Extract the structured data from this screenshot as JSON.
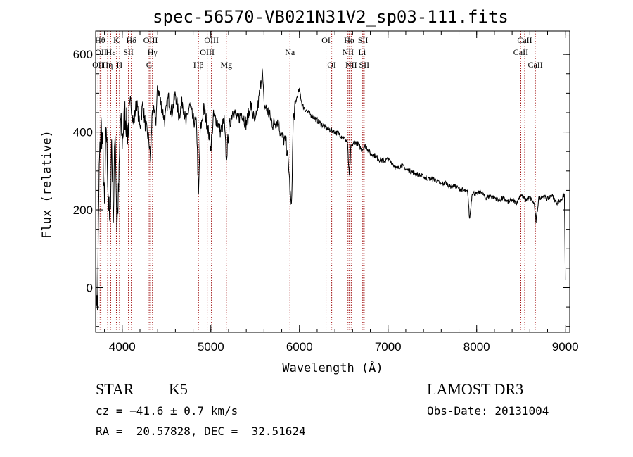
{
  "chart_data": {
    "type": "line",
    "title": "spec-56570-VB021N31V2_sp03-111.fits",
    "xlabel": "Wavelength (Å)",
    "ylabel": "Flux (relative)",
    "xlim": [
      3700,
      9050
    ],
    "ylim": [
      -115,
      660
    ],
    "xticks": [
      {
        "value": 4000,
        "label": "4000"
      },
      {
        "value": 5000,
        "label": "5000"
      },
      {
        "value": 6000,
        "label": "6000"
      },
      {
        "value": 7000,
        "label": "7000"
      },
      {
        "value": 8000,
        "label": "8000"
      },
      {
        "value": 9000,
        "label": "9000"
      }
    ],
    "yticks": [
      {
        "value": 0,
        "label": "0"
      },
      {
        "value": 200,
        "label": "200"
      },
      {
        "value": 400,
        "label": "400"
      },
      {
        "value": 600,
        "label": "600"
      }
    ],
    "line_color": "#a01010",
    "spectrum_color": "#000000",
    "lines": [
      {
        "label": "OII",
        "wave": 3727,
        "row": 2
      },
      {
        "label": "Hθ",
        "wave": 3750,
        "row": 0
      },
      {
        "label": "OII",
        "wave": 3760,
        "row": 1
      },
      {
        "label": "Hη",
        "wave": 3835,
        "row": 2
      },
      {
        "label": "Hε",
        "wave": 3870,
        "row": 1
      },
      {
        "label": "K",
        "wave": 3934,
        "row": 0
      },
      {
        "label": "H",
        "wave": 3969,
        "row": 2
      },
      {
        "label": "Hδ",
        "wave": 4102,
        "row": 0
      },
      {
        "label": "SII",
        "wave": 4070,
        "row": 1
      },
      {
        "label": "G",
        "wave": 4304,
        "row": 2
      },
      {
        "label": "OIII",
        "wave": 4320,
        "row": 0
      },
      {
        "label": "Hγ",
        "wave": 4341,
        "row": 1
      },
      {
        "label": "Hβ",
        "wave": 4861,
        "row": 2
      },
      {
        "label": "OIII",
        "wave": 4959,
        "row": 1
      },
      {
        "label": "OIII",
        "wave": 5007,
        "row": 0
      },
      {
        "label": "Mg",
        "wave": 5175,
        "row": 2
      },
      {
        "label": "Na",
        "wave": 5893,
        "row": 1
      },
      {
        "label": "OI",
        "wave": 6300,
        "row": 0
      },
      {
        "label": "OI",
        "wave": 6364,
        "row": 2
      },
      {
        "label": "NII",
        "wave": 6548,
        "row": 1
      },
      {
        "label": "Hα",
        "wave": 6563,
        "row": 0
      },
      {
        "label": "NII",
        "wave": 6584,
        "row": 2
      },
      {
        "label": "Li",
        "wave": 6707,
        "row": 1
      },
      {
        "label": "SII",
        "wave": 6717,
        "row": 0
      },
      {
        "label": "SII",
        "wave": 6731,
        "row": 2
      },
      {
        "label": "CaII",
        "wave": 8498,
        "row": 1
      },
      {
        "label": "CaII",
        "wave": 8542,
        "row": 0
      },
      {
        "label": "CaII",
        "wave": 8662,
        "row": 2
      }
    ],
    "spectrum": [
      [
        3700,
        40
      ],
      [
        3720,
        -60
      ],
      [
        3740,
        300
      ],
      [
        3760,
        420
      ],
      [
        3780,
        360
      ],
      [
        3800,
        200
      ],
      [
        3820,
        420
      ],
      [
        3840,
        260
      ],
      [
        3860,
        150
      ],
      [
        3880,
        380
      ],
      [
        3900,
        180
      ],
      [
        3920,
        420
      ],
      [
        3940,
        160
      ],
      [
        3960,
        250
      ],
      [
        3980,
        430
      ],
      [
        4000,
        380
      ],
      [
        4030,
        450
      ],
      [
        4060,
        400
      ],
      [
        4100,
        470
      ],
      [
        4130,
        420
      ],
      [
        4160,
        480
      ],
      [
        4200,
        410
      ],
      [
        4230,
        470
      ],
      [
        4260,
        420
      ],
      [
        4300,
        380
      ],
      [
        4320,
        330
      ],
      [
        4340,
        460
      ],
      [
        4380,
        430
      ],
      [
        4400,
        520
      ],
      [
        4440,
        470
      ],
      [
        4480,
        430
      ],
      [
        4520,
        490
      ],
      [
        4560,
        450
      ],
      [
        4600,
        500
      ],
      [
        4640,
        440
      ],
      [
        4680,
        480
      ],
      [
        4720,
        420
      ],
      [
        4760,
        470
      ],
      [
        4800,
        430
      ],
      [
        4840,
        420
      ],
      [
        4861,
        230
      ],
      [
        4880,
        400
      ],
      [
        4920,
        460
      ],
      [
        4960,
        420
      ],
      [
        5000,
        360
      ],
      [
        5030,
        440
      ],
      [
        5070,
        430
      ],
      [
        5110,
        400
      ],
      [
        5150,
        430
      ],
      [
        5175,
        330
      ],
      [
        5200,
        400
      ],
      [
        5250,
        460
      ],
      [
        5300,
        430
      ],
      [
        5350,
        450
      ],
      [
        5400,
        420
      ],
      [
        5450,
        470
      ],
      [
        5500,
        420
      ],
      [
        5540,
        480
      ],
      [
        5580,
        560
      ],
      [
        5600,
        470
      ],
      [
        5650,
        450
      ],
      [
        5700,
        420
      ],
      [
        5750,
        430
      ],
      [
        5800,
        390
      ],
      [
        5850,
        370
      ],
      [
        5880,
        310
      ],
      [
        5893,
        250
      ],
      [
        5910,
        200
      ],
      [
        5930,
        430
      ],
      [
        5960,
        480
      ],
      [
        6000,
        510
      ],
      [
        6030,
        470
      ],
      [
        6060,
        460
      ],
      [
        6100,
        450
      ],
      [
        6150,
        440
      ],
      [
        6200,
        430
      ],
      [
        6250,
        420
      ],
      [
        6300,
        410
      ],
      [
        6350,
        405
      ],
      [
        6400,
        400
      ],
      [
        6450,
        395
      ],
      [
        6500,
        385
      ],
      [
        6540,
        375
      ],
      [
        6563,
        285
      ],
      [
        6580,
        360
      ],
      [
        6620,
        375
      ],
      [
        6660,
        370
      ],
      [
        6700,
        355
      ],
      [
        6750,
        365
      ],
      [
        6800,
        345
      ],
      [
        6850,
        340
      ],
      [
        6900,
        330
      ],
      [
        6950,
        325
      ],
      [
        7000,
        330
      ],
      [
        7050,
        320
      ],
      [
        7100,
        305
      ],
      [
        7150,
        315
      ],
      [
        7200,
        305
      ],
      [
        7250,
        300
      ],
      [
        7300,
        295
      ],
      [
        7350,
        290
      ],
      [
        7400,
        285
      ],
      [
        7450,
        280
      ],
      [
        7500,
        280
      ],
      [
        7550,
        275
      ],
      [
        7600,
        265
      ],
      [
        7650,
        270
      ],
      [
        7700,
        260
      ],
      [
        7750,
        262
      ],
      [
        7800,
        255
      ],
      [
        7850,
        250
      ],
      [
        7900,
        245
      ],
      [
        7920,
        175
      ],
      [
        7950,
        245
      ],
      [
        8000,
        240
      ],
      [
        8050,
        248
      ],
      [
        8100,
        230
      ],
      [
        8150,
        236
      ],
      [
        8200,
        232
      ],
      [
        8250,
        225
      ],
      [
        8300,
        230
      ],
      [
        8350,
        220
      ],
      [
        8400,
        225
      ],
      [
        8450,
        218
      ],
      [
        8500,
        240
      ],
      [
        8550,
        225
      ],
      [
        8600,
        232
      ],
      [
        8650,
        215
      ],
      [
        8670,
        170
      ],
      [
        8700,
        230
      ],
      [
        8750,
        235
      ],
      [
        8800,
        228
      ],
      [
        8850,
        238
      ],
      [
        8900,
        218
      ],
      [
        8950,
        225
      ],
      [
        8990,
        240
      ],
      [
        9000,
        20
      ]
    ]
  },
  "info": {
    "object_class": "STAR",
    "subclass": "K5",
    "survey": "LAMOST DR3",
    "velocity": "cz = −41.6 ± 0.7 km/s",
    "obs_date": "Obs-Date: 20131004",
    "coords": "RA =  20.57828, DEC =  32.51624"
  }
}
